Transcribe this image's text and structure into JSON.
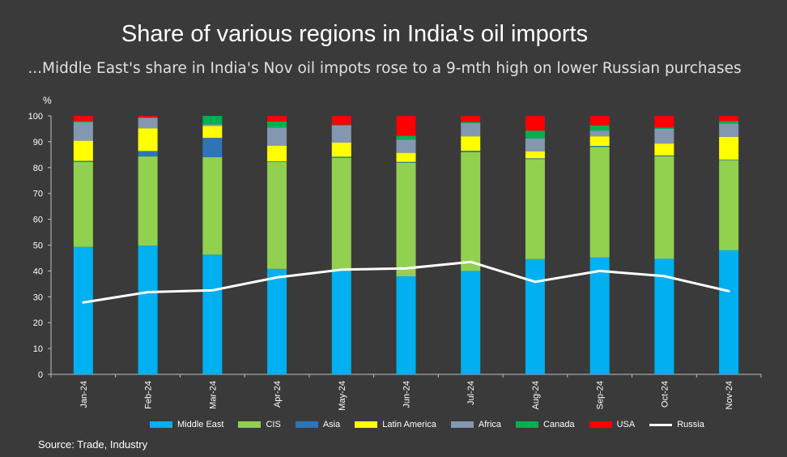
{
  "title": "Share of various regions in India's oil imports",
  "subtitle": "...Middle East's share in India's Nov oil impots rose to a 9-mth high on lower Russian purchases",
  "unit_label": "%",
  "source": "Source: Trade, Industry",
  "chart_data": {
    "type": "bar",
    "stacked": true,
    "title": "Share of various regions in India's oil imports",
    "ylabel": "%",
    "ylim": [
      0,
      100
    ],
    "yticks": [
      0,
      10,
      20,
      30,
      40,
      50,
      60,
      70,
      80,
      90,
      100
    ],
    "grid": false,
    "legend_position": "bottom",
    "categories": [
      "Jan-24",
      "Feb-24",
      "Mar-24",
      "Apr-24",
      "May-24",
      "Jun-24",
      "Jul-24",
      "Aug-24",
      "Sep-24",
      "Oct-24",
      "Nov-24"
    ],
    "series": [
      {
        "name": "Middle East",
        "color": "#00b0f0",
        "values": [
          49.3,
          49.8,
          46.3,
          40.8,
          40.0,
          37.9,
          40.0,
          44.6,
          45.2,
          44.7,
          48.0
        ]
      },
      {
        "name": "CIS",
        "color": "#92d050",
        "values": [
          32.9,
          34.5,
          37.7,
          41.4,
          43.8,
          44.0,
          46.0,
          38.7,
          42.8,
          39.7,
          34.9
        ]
      },
      {
        "name": "Asia",
        "color": "#2e75b6",
        "values": [
          0.4,
          2.1,
          7.5,
          0.2,
          0.4,
          0.3,
          0.5,
          0.3,
          0.4,
          0.3,
          0.2
        ]
      },
      {
        "name": "Latin America",
        "color": "#ffff00",
        "values": [
          7.8,
          8.8,
          4.6,
          6.1,
          5.5,
          3.5,
          5.6,
          2.7,
          3.7,
          4.6,
          8.8
        ]
      },
      {
        "name": "Africa",
        "color": "#8497b0",
        "values": [
          7.1,
          4.1,
          0.6,
          7.0,
          6.6,
          5.1,
          5.1,
          5.0,
          2.2,
          5.7,
          5.1
        ]
      },
      {
        "name": "Canada",
        "color": "#00b050",
        "values": [
          0.5,
          0.0,
          3.3,
          2.3,
          0.3,
          1.5,
          0.5,
          3.0,
          2.0,
          0.5,
          1.0
        ]
      },
      {
        "name": "USA",
        "color": "#ff0000",
        "values": [
          2.0,
          0.7,
          0.0,
          2.2,
          3.4,
          7.7,
          2.3,
          5.7,
          3.7,
          4.5,
          2.0
        ]
      }
    ],
    "line_series": {
      "name": "Russia",
      "color": "#ffffff",
      "values": [
        27.8,
        31.8,
        32.5,
        37.5,
        40.5,
        41.0,
        43.5,
        35.8,
        40.0,
        38.0,
        32.2
      ]
    }
  }
}
